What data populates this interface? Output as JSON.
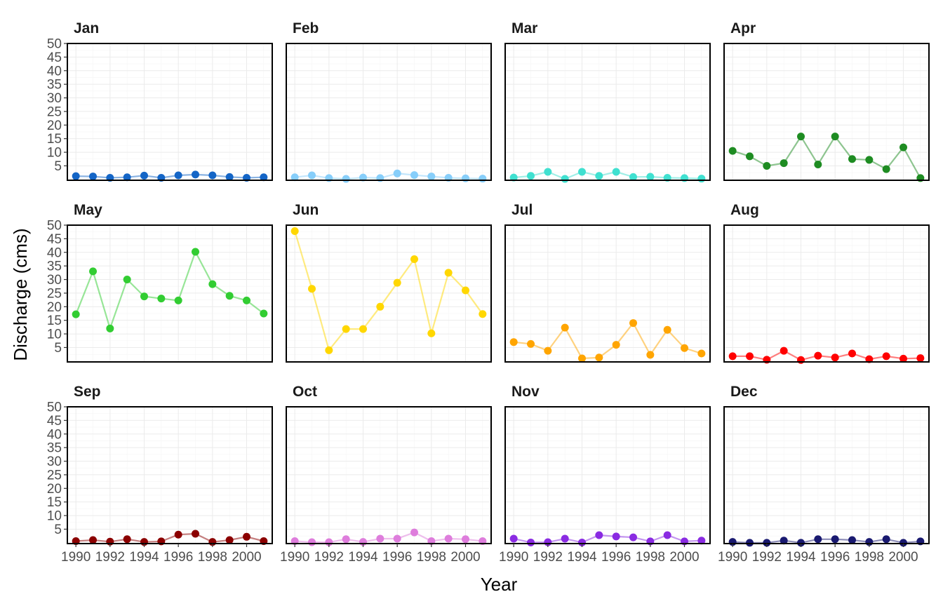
{
  "chart_data": {
    "type": "line",
    "xlabel": "Year",
    "ylabel": "Discharge (cms)",
    "x": [
      1990,
      1991,
      1992,
      1993,
      1994,
      1995,
      1996,
      1997,
      1998,
      1999,
      2000,
      2001
    ],
    "x_ticks": [
      1990,
      1992,
      1994,
      1996,
      1998,
      2000
    ],
    "y_ticks": [
      5,
      10,
      15,
      20,
      25,
      30,
      35,
      40,
      45,
      50
    ],
    "xlim": [
      1990,
      2001
    ],
    "ylim": [
      0,
      50
    ],
    "grid": true,
    "panels": [
      {
        "month": "Jan",
        "color": "#1465c6",
        "values": [
          1.2,
          1.1,
          0.6,
          0.8,
          1.4,
          0.6,
          1.5,
          1.8,
          1.5,
          0.9,
          0.6,
          0.8
        ]
      },
      {
        "month": "Feb",
        "color": "#87cefa",
        "values": [
          0.8,
          1.5,
          0.5,
          0.2,
          0.7,
          0.5,
          2.2,
          1.6,
          1.1,
          0.6,
          0.4,
          0.3
        ]
      },
      {
        "month": "Mar",
        "color": "#40e0d0",
        "values": [
          0.7,
          1.3,
          2.8,
          0.2,
          2.8,
          1.3,
          2.8,
          0.9,
          1.0,
          0.6,
          0.5,
          0.3
        ]
      },
      {
        "month": "Apr",
        "color": "#1e8c22",
        "values": [
          10.5,
          8.5,
          5.0,
          6.0,
          15.8,
          5.5,
          15.8,
          7.5,
          7.2,
          3.8,
          11.8,
          0.5
        ]
      },
      {
        "month": "May",
        "color": "#32cd32",
        "values": [
          17.2,
          33.0,
          12.0,
          30.0,
          23.8,
          23.0,
          22.3,
          40.2,
          28.3,
          24.0,
          22.3,
          17.5
        ]
      },
      {
        "month": "Jun",
        "color": "#ffd700",
        "values": [
          47.8,
          26.6,
          4.0,
          11.8,
          11.8,
          20.0,
          28.8,
          37.5,
          10.2,
          32.5,
          26.0,
          17.3
        ]
      },
      {
        "month": "Jul",
        "color": "#ffa500",
        "values": [
          7.0,
          6.3,
          3.8,
          12.3,
          1.0,
          1.3,
          6.0,
          14.0,
          2.3,
          11.5,
          4.8,
          2.8
        ]
      },
      {
        "month": "Aug",
        "color": "#ff0000",
        "values": [
          1.8,
          1.8,
          0.5,
          3.8,
          0.4,
          2.0,
          1.3,
          2.8,
          0.7,
          1.8,
          0.9,
          1.1
        ]
      },
      {
        "month": "Sep",
        "color": "#8b0000",
        "values": [
          0.6,
          1.0,
          0.4,
          1.3,
          0.3,
          0.5,
          3.0,
          3.3,
          0.3,
          1.0,
          2.2,
          0.6
        ]
      },
      {
        "month": "Oct",
        "color": "#de7ddc",
        "values": [
          0.6,
          0.2,
          0.2,
          1.3,
          0.3,
          1.5,
          1.5,
          3.8,
          0.6,
          1.5,
          1.3,
          0.6
        ]
      },
      {
        "month": "Nov",
        "color": "#8a2be2",
        "values": [
          1.5,
          0.1,
          0.2,
          1.5,
          0.1,
          2.8,
          2.3,
          2.0,
          0.5,
          2.8,
          0.5,
          0.8
        ]
      },
      {
        "month": "Dec",
        "color": "#191970",
        "values": [
          0.3,
          0.0,
          0.0,
          0.8,
          0.0,
          1.3,
          1.3,
          1.0,
          0.3,
          1.3,
          0.0,
          0.5
        ]
      }
    ]
  }
}
